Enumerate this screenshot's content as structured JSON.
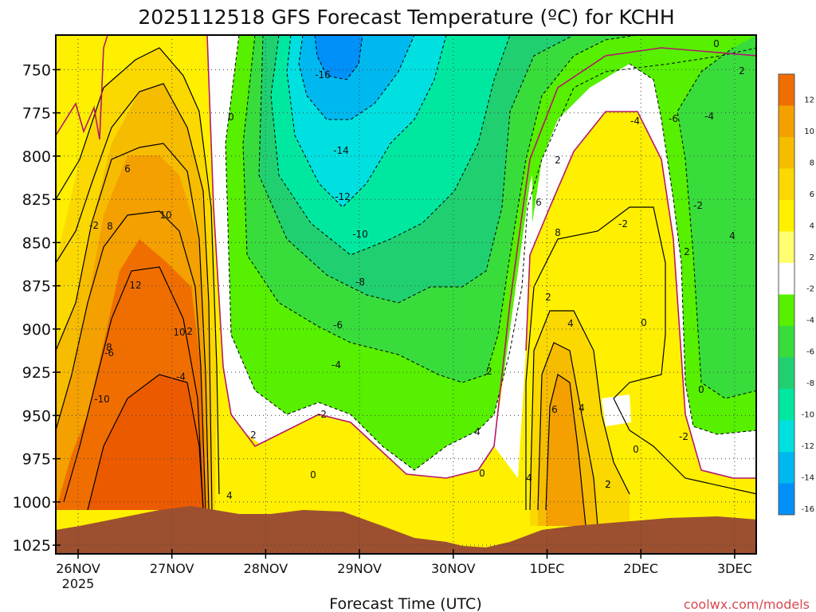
{
  "chart_data": {
    "type": "contour",
    "title": "2025112518 GFS Forecast Temperature (ºC) for KCHH",
    "xlabel": "Forecast Time (UTC)",
    "ylabel": "",
    "credit": "coolwx.com/models",
    "y_axis": {
      "ticks": [
        "750",
        "775",
        "800",
        "825",
        "850",
        "875",
        "900",
        "925",
        "950",
        "975",
        "1000",
        "1025"
      ],
      "reversed": true,
      "range": [
        730,
        1030
      ],
      "grid": "dotted"
    },
    "x_axis": {
      "ticks": [
        "26NOV",
        "27NOV",
        "28NOV",
        "29NOV",
        "30NOV",
        "1DEC",
        "2DEC",
        "3DEC"
      ],
      "first_tick_year": "2025",
      "grid": "dotted"
    },
    "colorbar": {
      "levels": [
        "12",
        "10",
        "8",
        "6",
        "4",
        "2",
        "-2",
        "-4",
        "-6",
        "-8",
        "-10",
        "-12",
        "-14",
        "-16"
      ],
      "colors": [
        "#f06e00",
        "#f3a000",
        "#f6bc00",
        "#fbd800",
        "#fff000",
        "#ffff70",
        "#ffffff",
        "#56f000",
        "#38dd3c",
        "#20d070",
        "#00e8a0",
        "#00e0e0",
        "#00b8f0",
        "#0090f8"
      ]
    },
    "contour_labels": [
      "-16",
      "-14",
      "-12",
      "-10",
      "-8",
      "-6",
      "-4",
      "-2",
      "0",
      "2",
      "4",
      "6",
      "8",
      "10",
      "12",
      "-2",
      "-4",
      "-6",
      "-10",
      "-2",
      "0",
      "2",
      "4",
      "0",
      "2",
      "4",
      "6",
      "8",
      "2",
      "4",
      "2",
      "0",
      "-2",
      "-4",
      "-6",
      "-2",
      "-4",
      "0",
      "0",
      "2",
      "4",
      "2",
      "-2",
      "0",
      "2",
      "4",
      "6",
      "8",
      "10"
    ],
    "colors": {
      "terrain": "#9c5030",
      "freezing_line": "#b4186c",
      "warm_contour": "#000000",
      "cold_contour": "#000000"
    }
  }
}
